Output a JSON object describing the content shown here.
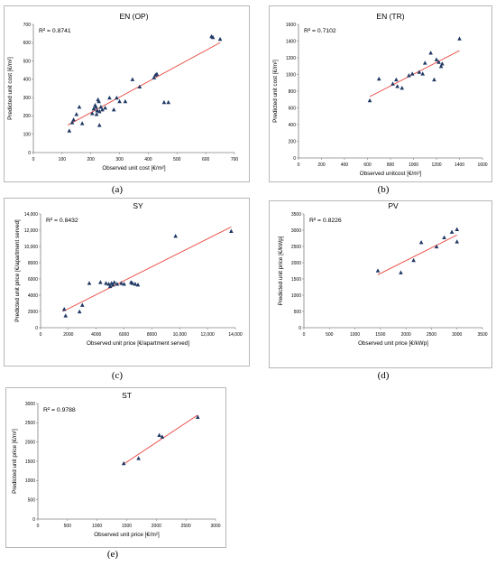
{
  "chart_data": [
    {
      "type": "scatter",
      "title": "EN (OP)",
      "caption": "(a)",
      "xlabel": "Observed unit cost [€/m²]",
      "ylabel": "Predicted unit cost [€/m²]",
      "r2_label": "R² = 0.8741",
      "xlim": [
        0,
        700
      ],
      "ylim": [
        0,
        700
      ],
      "xticks": [
        "0",
        "100",
        "200",
        "300",
        "400",
        "500",
        "600",
        "700"
      ],
      "yticks": [
        "0",
        "100",
        "200",
        "300",
        "400",
        "500",
        "600",
        "700"
      ],
      "marker_color": "#1f3864",
      "trend_color": "#e8433a",
      "trendline": [
        [
          120,
          150
        ],
        [
          650,
          600
        ]
      ],
      "x": [
        125,
        135,
        140,
        150,
        160,
        170,
        205,
        210,
        215,
        218,
        220,
        222,
        225,
        228,
        230,
        235,
        240,
        250,
        265,
        280,
        290,
        300,
        320,
        345,
        370,
        420,
        425,
        430,
        455,
        620,
        625,
        650,
        470,
        230
      ],
      "y": [
        120,
        165,
        180,
        210,
        250,
        160,
        215,
        240,
        260,
        250,
        210,
        230,
        290,
        280,
        225,
        250,
        235,
        245,
        300,
        235,
        300,
        280,
        280,
        400,
        360,
        410,
        425,
        430,
        275,
        635,
        630,
        620,
        275,
        150
      ]
    },
    {
      "type": "scatter",
      "title": "EN (TR)",
      "caption": "(b)",
      "xlabel": "Observed unitcost [€/m²]",
      "ylabel": "Predicted unit cost [€/m²]",
      "r2_label": "R² = 0.7102",
      "xlim": [
        0,
        1600
      ],
      "ylim": [
        0,
        1600
      ],
      "xticks": [
        "0",
        "200",
        "400",
        "600",
        "800",
        "1000",
        "1200",
        "1400",
        "1600"
      ],
      "yticks": [
        "0",
        "200",
        "400",
        "600",
        "800",
        "1000",
        "1200",
        "1400",
        "1600"
      ],
      "marker_color": "#1f3864",
      "trend_color": "#e8433a",
      "trendline": [
        [
          620,
          735
        ],
        [
          1400,
          1285
        ]
      ],
      "x": [
        620,
        700,
        820,
        850,
        860,
        900,
        960,
        990,
        1050,
        1080,
        1100,
        1150,
        1180,
        1200,
        1220,
        1240,
        1250,
        1400
      ],
      "y": [
        690,
        950,
        890,
        940,
        860,
        840,
        990,
        1010,
        1030,
        1010,
        1140,
        1260,
        940,
        1180,
        1150,
        1100,
        1130,
        1430
      ]
    },
    {
      "type": "scatter",
      "title": "SY",
      "caption": "(c)",
      "xlabel": "Observed unit price [€/apartment served]",
      "ylabel": "Predicted unit price [€/apartment served]",
      "r2_label": "R² = 0.8432",
      "xlim": [
        0,
        14000
      ],
      "ylim": [
        0,
        14000
      ],
      "xticks": [
        "0",
        "2000",
        "4000",
        "6000",
        "8000",
        "10,000",
        "12,000",
        "14,000"
      ],
      "yticks": [
        "0",
        "2000",
        "4000",
        "6000",
        "8000",
        "10,000",
        "12,000",
        "14,000"
      ],
      "marker_color": "#1f3864",
      "trend_color": "#e8433a",
      "trendline": [
        [
          1600,
          2000
        ],
        [
          13700,
          12400
        ]
      ],
      "x": [
        1700,
        1800,
        2800,
        3000,
        3500,
        4300,
        4700,
        4900,
        5000,
        5100,
        5200,
        5300,
        5500,
        5800,
        6000,
        6500,
        6600,
        6800,
        7000,
        9700,
        13700
      ],
      "y": [
        2300,
        1500,
        2000,
        2800,
        5500,
        5600,
        5500,
        5400,
        5100,
        5500,
        5300,
        5600,
        5400,
        5500,
        5400,
        5600,
        5500,
        5400,
        5300,
        11300,
        11900
      ]
    },
    {
      "type": "scatter",
      "title": "PV",
      "caption": "(d)",
      "xlabel": "Observed unit price [€/kWp]",
      "ylabel": "Predicted unit price [€/kWp]",
      "r2_label": "R² = 0.8226",
      "xlim": [
        0,
        3500
      ],
      "ylim": [
        0,
        3500
      ],
      "xticks": [
        "0",
        "500",
        "1000",
        "1500",
        "2000",
        "2500",
        "3000",
        "3500"
      ],
      "yticks": [
        "0",
        "500",
        "1000",
        "1500",
        "2000",
        "2500",
        "3000",
        "3500"
      ],
      "marker_color": "#1f3864",
      "trend_color": "#e8433a",
      "trendline": [
        [
          1450,
          1630
        ],
        [
          3000,
          2850
        ]
      ],
      "x": [
        1450,
        1900,
        2150,
        2300,
        2600,
        2750,
        2900,
        3000,
        3000
      ],
      "y": [
        1760,
        1700,
        2080,
        2630,
        2500,
        2780,
        2950,
        3030,
        2650
      ]
    },
    {
      "type": "scatter",
      "title": "ST",
      "caption": "(e)",
      "xlabel": "Observed unit price [€/m²]",
      "ylabel": "Predicted unit price [€/m²]",
      "r2_label": "R² = 0.9788",
      "xlim": [
        0,
        3000
      ],
      "ylim": [
        0,
        3000
      ],
      "xticks": [
        "0",
        "500",
        "1000",
        "1500",
        "2000",
        "2500",
        "3000"
      ],
      "yticks": [
        "0",
        "500",
        "1000",
        "1500",
        "2000",
        "2500",
        "3000"
      ],
      "marker_color": "#1f3864",
      "trend_color": "#e8433a",
      "trendline": [
        [
          1450,
          1430
        ],
        [
          2700,
          2700
        ]
      ],
      "x": [
        1450,
        1700,
        2050,
        2100,
        2700
      ],
      "y": [
        1450,
        1580,
        2180,
        2140,
        2650
      ]
    }
  ]
}
